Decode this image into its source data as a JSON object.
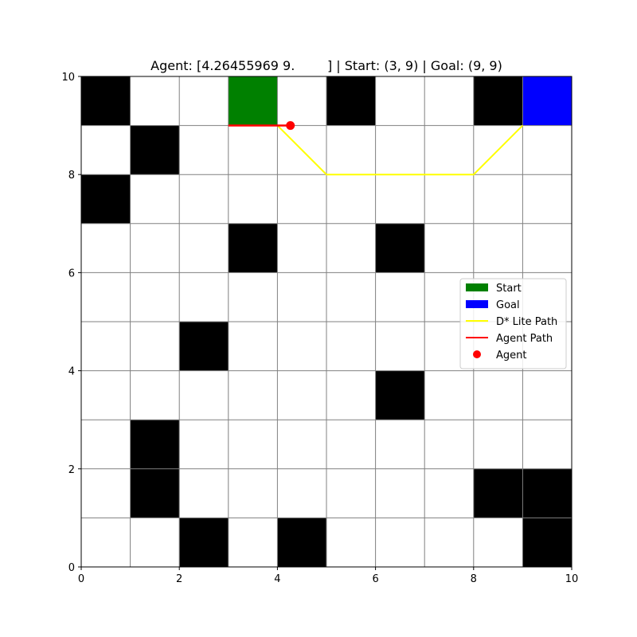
{
  "chart_data": {
    "type": "grid",
    "title": "Agent: [4.26455969 9.        ] | Start: (3, 9) | Goal: (9, 9)",
    "xlim": [
      0,
      10
    ],
    "ylim": [
      0,
      10
    ],
    "grid": true,
    "x_ticks": [
      0,
      2,
      4,
      6,
      8,
      10
    ],
    "y_ticks": [
      0,
      2,
      4,
      6,
      8,
      10
    ],
    "grid_size": [
      10,
      10
    ],
    "obstacles": [
      [
        0,
        9
      ],
      [
        5,
        9
      ],
      [
        8,
        9
      ],
      [
        1,
        8
      ],
      [
        0,
        7
      ],
      [
        3,
        6
      ],
      [
        6,
        6
      ],
      [
        2,
        4
      ],
      [
        6,
        3
      ],
      [
        1,
        2
      ],
      [
        1,
        1
      ],
      [
        8,
        1
      ],
      [
        9,
        1
      ],
      [
        2,
        0
      ],
      [
        4,
        0
      ],
      [
        9,
        0
      ]
    ],
    "start": [
      3,
      9
    ],
    "goal": [
      9,
      9
    ],
    "dstar_path": [
      [
        4,
        9
      ],
      [
        5,
        8
      ],
      [
        6,
        8
      ],
      [
        7,
        8
      ],
      [
        8,
        8
      ],
      [
        9,
        9
      ]
    ],
    "agent_path": [
      [
        3,
        9
      ],
      [
        4,
        9
      ],
      [
        4.26455969,
        9
      ]
    ],
    "agent_position": [
      4.26455969,
      9
    ],
    "legend": {
      "placement": "center-right",
      "entries": [
        {
          "label": "Start",
          "kind": "patch",
          "color": "#008000"
        },
        {
          "label": "Goal",
          "kind": "patch",
          "color": "#0000ff"
        },
        {
          "label": "D* Lite Path",
          "kind": "line",
          "color": "#ffff00"
        },
        {
          "label": "Agent Path",
          "kind": "line",
          "color": "#ff0000"
        },
        {
          "label": "Agent",
          "kind": "point",
          "color": "#ff0000"
        }
      ]
    },
    "colors": {
      "obstacle": "#000000",
      "start": "#008000",
      "goal": "#0000ff",
      "dstar_path": "#ffff00",
      "agent_path": "#ff0000",
      "agent": "#ff0000",
      "grid": "#808080"
    }
  }
}
